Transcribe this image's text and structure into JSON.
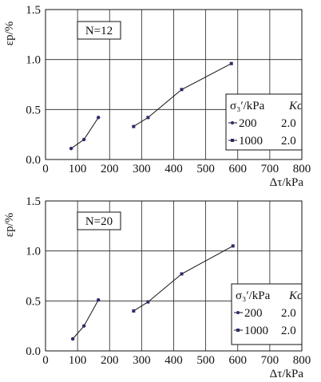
{
  "chart_data": [
    {
      "type": "line",
      "box_label": "N=12",
      "xlabel": "Δτ/kPa",
      "ylabel": "εp/%",
      "xlim": [
        0,
        800
      ],
      "ylim": [
        0,
        1.5
      ],
      "x_ticks": [
        "0",
        "100",
        "200",
        "300",
        "400",
        "500",
        "600",
        "700",
        "800"
      ],
      "y_ticks": [
        "0.0",
        "0.5",
        "1.0",
        "1.5"
      ],
      "grid": true,
      "legend": {
        "position": "right",
        "header_sigma": "σ₃′/kPa",
        "header_k": "Kc"
      },
      "series": [
        {
          "name": "200",
          "k": "2.0",
          "marker": "circle",
          "x": [
            80,
            120,
            165
          ],
          "y": [
            0.11,
            0.2,
            0.42
          ]
        },
        {
          "name": "1000",
          "k": "2.0",
          "marker": "square",
          "x": [
            275,
            320,
            425,
            580
          ],
          "y": [
            0.33,
            0.42,
            0.7,
            0.96
          ]
        }
      ]
    },
    {
      "type": "line",
      "box_label": "N=20",
      "xlabel": "Δτ/kPa",
      "ylabel": "εp/%",
      "xlim": [
        0,
        800
      ],
      "ylim": [
        0,
        1.5
      ],
      "x_ticks": [
        "0",
        "100",
        "200",
        "300",
        "400",
        "500",
        "600",
        "700",
        "800"
      ],
      "y_ticks": [
        "0.0",
        "0.5",
        "1.0",
        "1.5"
      ],
      "grid": true,
      "legend": {
        "position": "right",
        "header_sigma": "σ₃′/kPa",
        "header_k": "Kc"
      },
      "series": [
        {
          "name": "200",
          "k": "2.0",
          "marker": "circle",
          "x": [
            85,
            120,
            165
          ],
          "y": [
            0.12,
            0.25,
            0.51
          ]
        },
        {
          "name": "1000",
          "k": "2.0",
          "marker": "square",
          "x": [
            275,
            320,
            425,
            585
          ],
          "y": [
            0.4,
            0.49,
            0.77,
            1.05
          ]
        }
      ]
    }
  ]
}
